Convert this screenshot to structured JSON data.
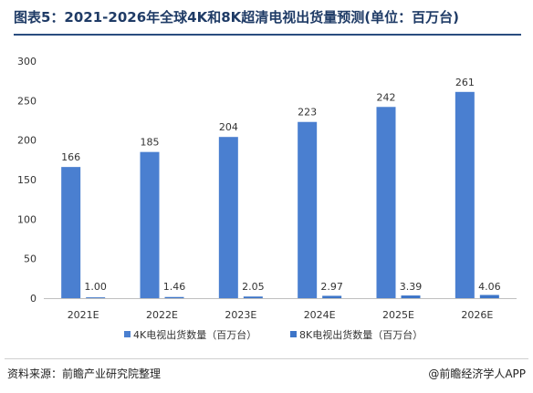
{
  "header": {
    "title": "图表5：2021-2026年全球4K和8K超清电视出货量预测(单位：百万台)"
  },
  "footer": {
    "source": "资料来源：前瞻产业研究院整理",
    "credit": "@前瞻经济学人APP"
  },
  "colors": {
    "series_4k": "#4a7fd0",
    "series_8k": "#3d75c8",
    "axis": "#bfbfbf"
  },
  "chart_data": {
    "type": "bar",
    "title": "图表5：2021-2026年全球4K和8K超清电视出货量预测(单位：百万台)",
    "categories": [
      "2021E",
      "2022E",
      "2023E",
      "2024E",
      "2025E",
      "2026E"
    ],
    "series": [
      {
        "name": "4K电视出货数量（百万台）",
        "values": [
          166,
          185,
          204,
          223,
          242,
          261
        ],
        "labels": [
          "166",
          "185",
          "204",
          "223",
          "242",
          "261"
        ]
      },
      {
        "name": "8K电视出货数量（百万台）",
        "values": [
          1.0,
          1.46,
          2.05,
          2.97,
          3.39,
          4.06
        ],
        "labels": [
          "1.00",
          "1.46",
          "2.05",
          "2.97",
          "3.39",
          "4.06"
        ]
      }
    ],
    "ylim": [
      0,
      300
    ],
    "yticks": [
      "0",
      "50",
      "100",
      "150",
      "200",
      "250",
      "300"
    ],
    "grid": false,
    "legend": "bottom"
  }
}
